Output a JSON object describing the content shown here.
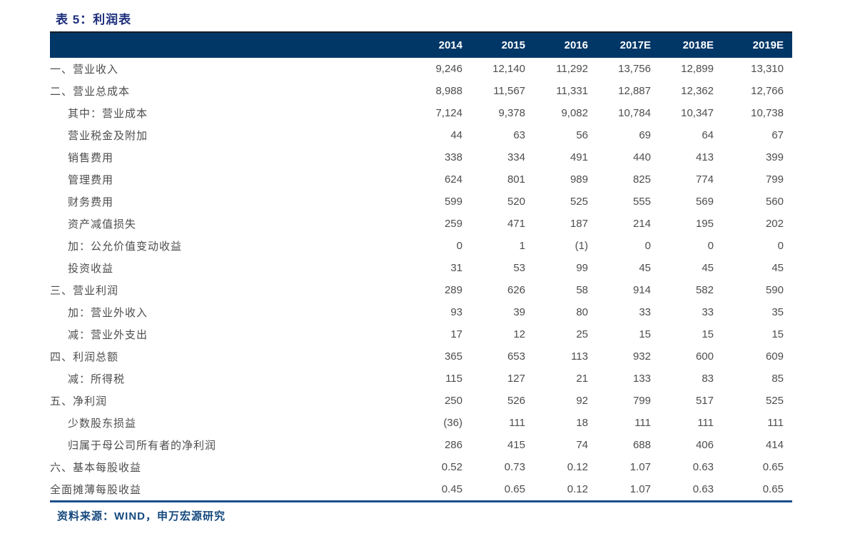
{
  "table_title": "表 5：利润表",
  "columns": [
    "2014",
    "2015",
    "2016",
    "2017E",
    "2018E",
    "2019E"
  ],
  "rows": [
    {
      "label": "一、营业收入",
      "indent": false,
      "values": [
        "9,246",
        "12,140",
        "11,292",
        "13,756",
        "12,899",
        "13,310"
      ]
    },
    {
      "label": "二、营业总成本",
      "indent": false,
      "values": [
        "8,988",
        "11,567",
        "11,331",
        "12,887",
        "12,362",
        "12,766"
      ]
    },
    {
      "label": "其中：营业成本",
      "indent": true,
      "values": [
        "7,124",
        "9,378",
        "9,082",
        "10,784",
        "10,347",
        "10,738"
      ]
    },
    {
      "label": "营业税金及附加",
      "indent": true,
      "values": [
        "44",
        "63",
        "56",
        "69",
        "64",
        "67"
      ]
    },
    {
      "label": "销售费用",
      "indent": true,
      "values": [
        "338",
        "334",
        "491",
        "440",
        "413",
        "399"
      ]
    },
    {
      "label": "管理费用",
      "indent": true,
      "values": [
        "624",
        "801",
        "989",
        "825",
        "774",
        "799"
      ]
    },
    {
      "label": "财务费用",
      "indent": true,
      "values": [
        "599",
        "520",
        "525",
        "555",
        "569",
        "560"
      ]
    },
    {
      "label": "资产减值损失",
      "indent": true,
      "values": [
        "259",
        "471",
        "187",
        "214",
        "195",
        "202"
      ]
    },
    {
      "label": "加：公允价值变动收益",
      "indent": true,
      "values": [
        "0",
        "1",
        "(1)",
        "0",
        "0",
        "0"
      ]
    },
    {
      "label": "投资收益",
      "indent": true,
      "values": [
        "31",
        "53",
        "99",
        "45",
        "45",
        "45"
      ]
    },
    {
      "label": "三、营业利润",
      "indent": false,
      "values": [
        "289",
        "626",
        "58",
        "914",
        "582",
        "590"
      ]
    },
    {
      "label": "加：营业外收入",
      "indent": true,
      "values": [
        "93",
        "39",
        "80",
        "33",
        "33",
        "35"
      ]
    },
    {
      "label": "减：营业外支出",
      "indent": true,
      "values": [
        "17",
        "12",
        "25",
        "15",
        "15",
        "15"
      ]
    },
    {
      "label": "四、利润总额",
      "indent": false,
      "values": [
        "365",
        "653",
        "113",
        "932",
        "600",
        "609"
      ]
    },
    {
      "label": "减：所得税",
      "indent": true,
      "values": [
        "115",
        "127",
        "21",
        "133",
        "83",
        "85"
      ]
    },
    {
      "label": "五、净利润",
      "indent": false,
      "values": [
        "250",
        "526",
        "92",
        "799",
        "517",
        "525"
      ]
    },
    {
      "label": "少数股东损益",
      "indent": true,
      "values": [
        "(36)",
        "111",
        "18",
        "111",
        "111",
        "111"
      ]
    },
    {
      "label": "归属于母公司所有者的净利润",
      "indent": true,
      "values": [
        "286",
        "415",
        "74",
        "688",
        "406",
        "414"
      ]
    },
    {
      "label": "六、基本每股收益",
      "indent": false,
      "values": [
        "0.52",
        "0.73",
        "0.12",
        "1.07",
        "0.63",
        "0.65"
      ]
    },
    {
      "label": "全面摊薄每股收益",
      "indent": false,
      "values": [
        "0.45",
        "0.65",
        "0.12",
        "1.07",
        "0.63",
        "0.65"
      ]
    }
  ],
  "footer": {
    "source_text": "资料来源：WIND，申万宏源研究"
  },
  "colors": {
    "header_bar": "#003767",
    "title_text": "#1c2e7c",
    "title_rule": "#191d28",
    "footer_rule": "#1c4e8c",
    "footer_text": "#15497f",
    "body_text": "#4d4d4d",
    "header_text": "#ffffff"
  }
}
